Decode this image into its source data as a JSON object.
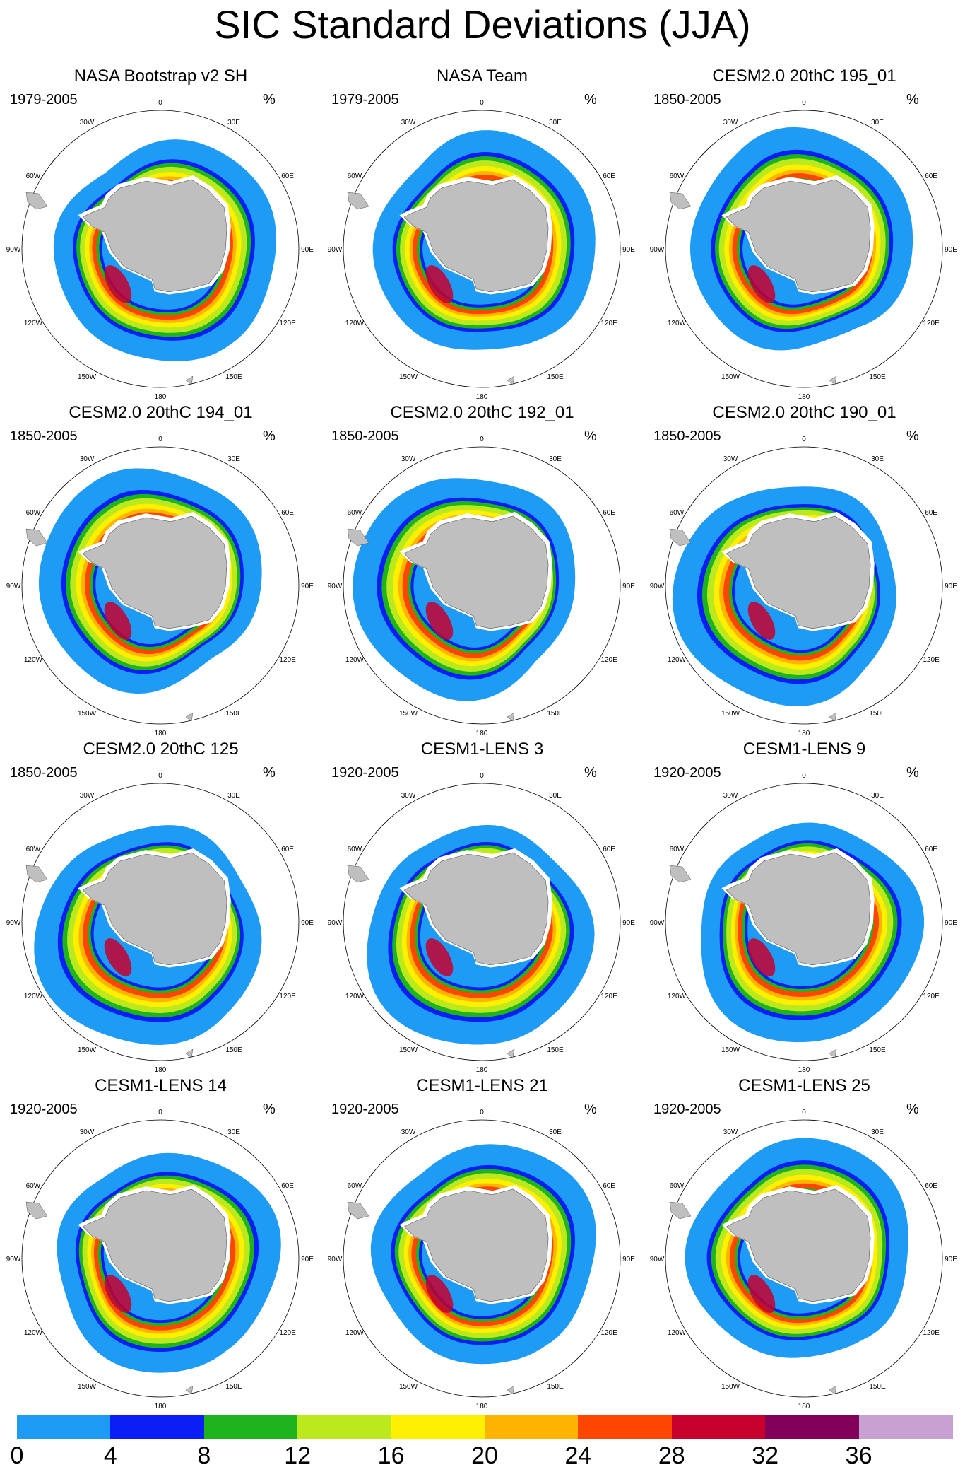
{
  "title": "SIC Standard Deviations (JJA)",
  "unit": "%",
  "colorbar": {
    "colors": [
      "#1e9bf5",
      "#0a1ef5",
      "#1eb41e",
      "#bce81e",
      "#fff000",
      "#ffb400",
      "#ff4600",
      "#c8002d",
      "#82005a",
      "#c8a0d2"
    ],
    "labels": [
      "0",
      "4",
      "8",
      "12",
      "16",
      "20",
      "24",
      "28",
      "32",
      "36"
    ]
  },
  "longitude_labels": [
    "0",
    "30E",
    "60E",
    "90E",
    "120E",
    "150E",
    "180",
    "150W",
    "120W",
    "90W",
    "60W",
    "30W"
  ],
  "panels": [
    {
      "title": "NASA Bootstrap v2 SH",
      "period": "1979-2005"
    },
    {
      "title": "NASA Team",
      "period": "1979-2005"
    },
    {
      "title": "CESM2.0 20thC 195_01",
      "period": "1850-2005"
    },
    {
      "title": "CESM2.0 20thC 194_01",
      "period": "1850-2005"
    },
    {
      "title": "CESM2.0 20thC 192_01",
      "period": "1850-2005"
    },
    {
      "title": "CESM2.0 20thC 190_01",
      "period": "1850-2005"
    },
    {
      "title": "CESM2.0 20thC 125",
      "period": "1850-2005"
    },
    {
      "title": "CESM1-LENS 3",
      "period": "1920-2005"
    },
    {
      "title": "CESM1-LENS 9",
      "period": "1920-2005"
    },
    {
      "title": "CESM1-LENS 14",
      "period": "1920-2005"
    },
    {
      "title": "CESM1-LENS 21",
      "period": "1920-2005"
    },
    {
      "title": "CESM1-LENS 25",
      "period": "1920-2005"
    }
  ]
}
